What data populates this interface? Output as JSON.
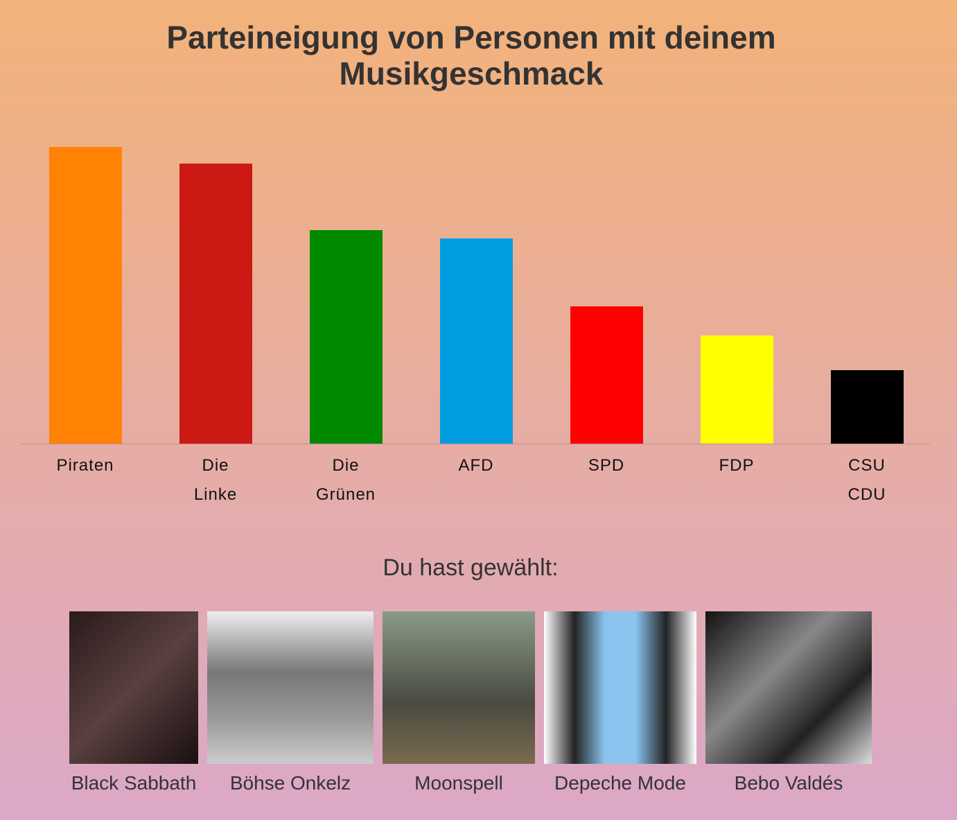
{
  "chart_data": {
    "type": "bar",
    "title": "Parteineigung von Personen mit deinem Musikgeschmack",
    "categories": [
      "Piraten",
      "Die\nLinke",
      "Die\nGrünen",
      "AFD",
      "SPD",
      "FDP",
      "CSU\nCDU"
    ],
    "values": [
      428,
      404,
      308,
      296,
      198,
      156,
      106
    ],
    "colors": [
      "#ff8205",
      "#cc1913",
      "#008a00",
      "#009ee0",
      "#ff0000",
      "#ffff00",
      "#000000"
    ],
    "ylim": [
      0,
      440
    ]
  },
  "selected": {
    "title": "Du hast gewählt:",
    "artists": [
      {
        "name": "Black Sabbath"
      },
      {
        "name": "Böhse Onkelz"
      },
      {
        "name": "Moonspell"
      },
      {
        "name": "Depeche Mode"
      },
      {
        "name": "Bebo Valdés"
      }
    ]
  }
}
